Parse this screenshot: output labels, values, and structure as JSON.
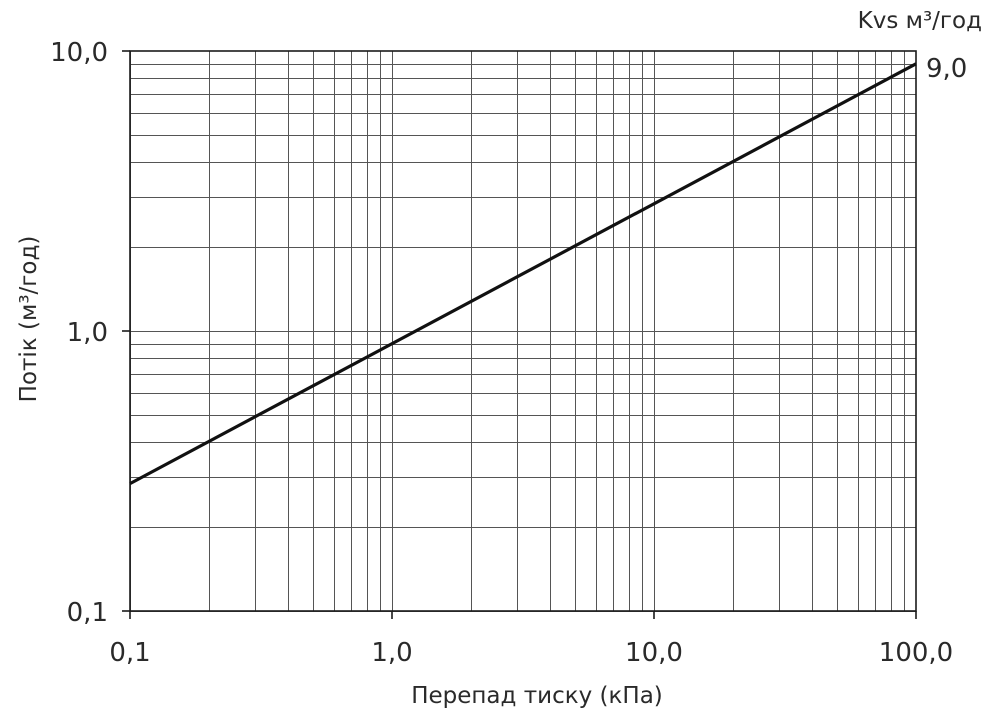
{
  "chart_data": {
    "type": "line",
    "x_scale": "log",
    "y_scale": "log",
    "xlim": [
      0.1,
      100
    ],
    "ylim": [
      0.1,
      10
    ],
    "xlabel": "Перепад тиску (кПа)",
    "ylabel": "Потік (м³/год)",
    "x_tick_labels": [
      "0,1",
      "1,0",
      "10,0",
      "100,0"
    ],
    "y_tick_labels": [
      "0,1",
      "1,0",
      "10,0"
    ],
    "grid": true,
    "series": [
      {
        "name": "Kvs м³/год",
        "value_label": "9,0",
        "x": [
          0.1,
          100
        ],
        "y": [
          0.285,
          9.0
        ]
      }
    ]
  },
  "colors": {
    "line": "#111111",
    "grid": "#555555",
    "text": "#2a2a2a"
  }
}
